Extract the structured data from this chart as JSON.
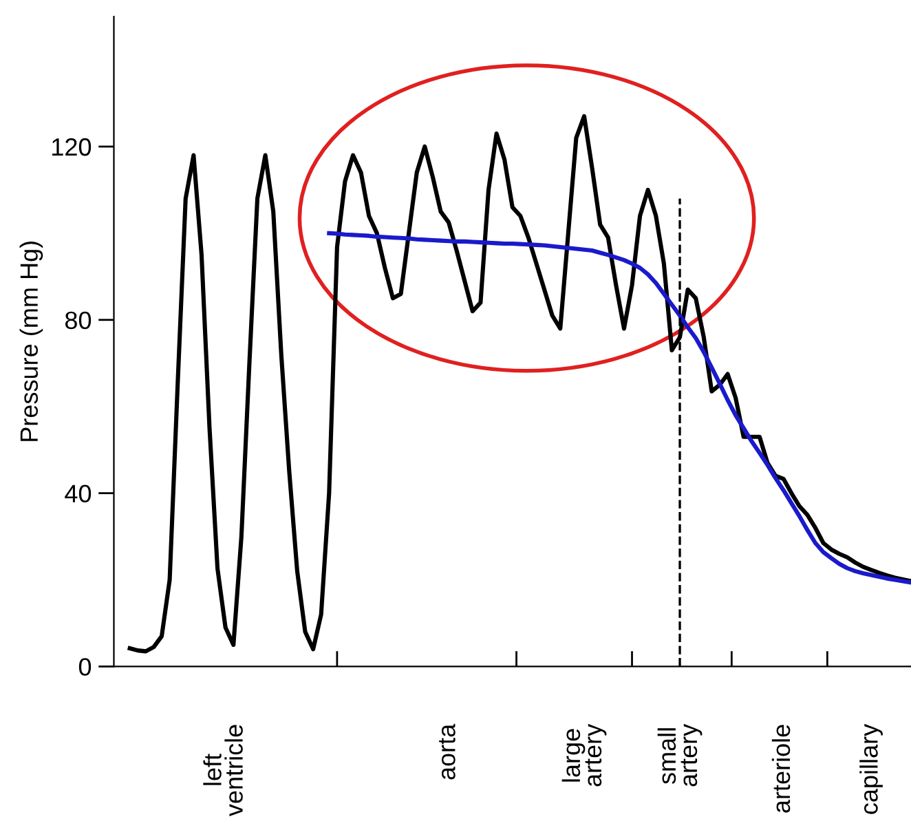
{
  "chart_data": {
    "type": "line",
    "ylabel": "Pressure (mm Hg)",
    "categories": [
      null,
      null,
      null,
      null,
      null,
      null,
      null,
      null,
      null,
      null,
      null,
      null,
      null,
      null,
      "left\nventricle",
      null,
      null,
      null,
      null,
      null,
      null,
      null,
      null,
      null,
      null,
      null,
      null,
      null,
      null,
      null,
      null,
      null,
      null,
      null,
      null,
      null,
      null,
      null,
      null,
      null,
      null,
      null,
      "aorta",
      null,
      null,
      null,
      null,
      null,
      null,
      null,
      null,
      null,
      null,
      null,
      null,
      null,
      null,
      null,
      null,
      "large\nartery",
      null,
      null,
      null,
      null,
      null,
      null,
      null,
      null,
      null,
      null,
      null,
      "small\nartery",
      null,
      null,
      null,
      null,
      null,
      null,
      null,
      null,
      null,
      null,
      null,
      null,
      "arteriole",
      null,
      null,
      null,
      null,
      null,
      null,
      null,
      null,
      null,
      null,
      "capillary",
      null,
      null,
      null,
      null,
      null
    ],
    "ylim": [
      0,
      150
    ],
    "yticks": [
      0,
      40,
      80,
      120
    ],
    "grid": false,
    "legend": false,
    "marker": "none",
    "line_style": "solid",
    "series": [
      {
        "color": "#000000",
        "values": [
          null,
          null,
          4.2,
          3.7,
          3.5,
          4.5,
          7,
          20,
          65,
          108,
          118,
          95,
          55,
          22.6,
          9,
          5,
          30,
          70,
          108,
          118,
          105,
          72,
          45,
          22,
          8,
          4,
          12,
          40,
          96.8,
          112,
          118,
          114,
          104,
          100,
          92,
          85,
          86,
          100,
          114,
          120,
          113,
          105,
          102.5,
          96,
          89,
          82,
          84,
          110,
          123,
          117,
          106,
          104,
          99,
          93,
          87,
          81,
          78,
          100,
          122,
          127,
          115,
          102,
          99,
          88,
          78,
          88,
          104,
          110,
          104,
          93,
          73,
          76,
          87,
          85,
          76,
          63.5,
          65,
          67.5,
          62,
          53,
          53,
          53,
          47,
          44,
          43.3,
          40,
          37,
          35,
          32,
          28.5,
          27,
          26,
          25.2,
          24,
          23,
          22.3,
          21.6,
          21,
          20.5,
          20.1,
          19.7
        ]
      },
      {
        "color": "#1a1acc",
        "values": [
          null,
          null,
          null,
          null,
          null,
          null,
          null,
          null,
          null,
          null,
          null,
          null,
          null,
          null,
          null,
          null,
          null,
          null,
          null,
          null,
          null,
          null,
          null,
          null,
          null,
          null,
          null,
          100,
          99.9,
          99.7,
          99.6,
          99.5,
          99.4,
          99.2,
          99.1,
          99,
          98.9,
          98.8,
          98.6,
          98.5,
          98.4,
          98.3,
          98.2,
          98.1,
          98.1,
          98,
          97.9,
          97.8,
          97.7,
          97.6,
          97.6,
          97.5,
          97.4,
          97.3,
          97.2,
          97,
          96.8,
          96.6,
          96.4,
          96.2,
          96,
          95.5,
          95,
          94.4,
          93.8,
          93,
          92,
          90.5,
          88.5,
          86,
          83.5,
          81,
          78.3,
          75.8,
          72.6,
          69,
          65.3,
          61.5,
          58,
          55,
          52,
          49.3,
          46.5,
          43.5,
          40.7,
          37.7,
          34.7,
          31.5,
          28.5,
          26.4,
          25,
          23.7,
          22.7,
          22,
          21.5,
          21.1,
          20.7,
          20.3,
          20,
          19.7,
          19.4
        ]
      }
    ]
  }
}
